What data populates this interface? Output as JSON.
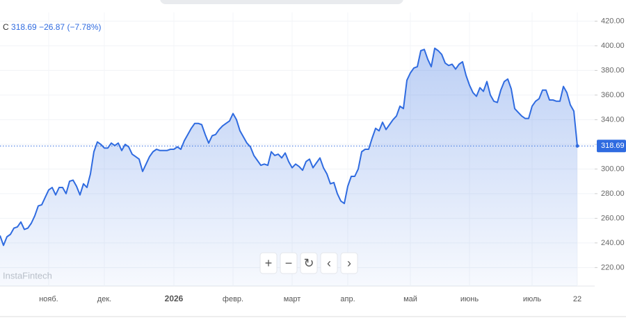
{
  "chart_data": {
    "type": "line",
    "symbol": "C",
    "price_label": "318.69",
    "change": "−26.87",
    "change_pct": "(−7.78%)",
    "watermark": "InstaFintech",
    "categories": [
      null,
      null,
      null,
      null,
      null,
      null,
      null,
      null,
      null,
      null,
      null,
      null,
      null,
      null,
      "нояб.",
      null,
      null,
      null,
      null,
      null,
      null,
      null,
      null,
      null,
      null,
      null,
      null,
      null,
      null,
      null,
      "дек.",
      null,
      null,
      null,
      null,
      null,
      null,
      null,
      null,
      null,
      null,
      null,
      null,
      null,
      null,
      null,
      null,
      null,
      null,
      null,
      "2026",
      null,
      null,
      null,
      null,
      null,
      null,
      null,
      null,
      null,
      null,
      null,
      null,
      null,
      null,
      null,
      null,
      "февр.",
      null,
      null,
      null,
      null,
      null,
      null,
      null,
      null,
      null,
      null,
      null,
      null,
      null,
      null,
      null,
      null,
      "март",
      null,
      null,
      null,
      null,
      null,
      null,
      null,
      null,
      null,
      null,
      null,
      null,
      null,
      null,
      null,
      "апр.",
      null,
      null,
      null,
      null,
      null,
      null,
      null,
      null,
      null,
      null,
      null,
      null,
      null,
      null,
      null,
      null,
      null,
      "май",
      null,
      null,
      null,
      null,
      null,
      null,
      null,
      null,
      null,
      null,
      null,
      null,
      null,
      null,
      null,
      null,
      "июнь",
      null,
      null,
      null,
      null,
      null,
      null,
      null,
      null,
      null,
      null,
      null,
      null,
      null,
      null,
      null,
      null,
      null,
      "июль",
      null,
      null,
      null,
      null,
      null,
      null,
      null,
      null,
      null,
      null,
      null,
      null,
      "22"
    ],
    "series": [
      {
        "color": "#2f6be0",
        "values": [
          246,
          238,
          245,
          247,
          252,
          253,
          257,
          251,
          252,
          256,
          262,
          270,
          271,
          277,
          283,
          285,
          279,
          285,
          285,
          280,
          290,
          291,
          286,
          279,
          288,
          285,
          296,
          314,
          322,
          320,
          317,
          317,
          321,
          319,
          321,
          315,
          320,
          318,
          312,
          310,
          308,
          298,
          304,
          310,
          314,
          316,
          315,
          315,
          315,
          316,
          316,
          318,
          316,
          323,
          328,
          333,
          337,
          337,
          336,
          328,
          321,
          327,
          328,
          332,
          335,
          337,
          339,
          345,
          340,
          331,
          326,
          321,
          318,
          311,
          307,
          303,
          304,
          303,
          314,
          311,
          312,
          309,
          313,
          306,
          301,
          304,
          302,
          299,
          306,
          308,
          301,
          305,
          309,
          301,
          296,
          288,
          289,
          280,
          274,
          272,
          286,
          294,
          294,
          300,
          314,
          316,
          316,
          325,
          333,
          331,
          338,
          332,
          336,
          340,
          343,
          351,
          349,
          372,
          378,
          382,
          383,
          396,
          397,
          389,
          383,
          398,
          396,
          393,
          386,
          384,
          385,
          381,
          385,
          387,
          376,
          368,
          362,
          359,
          366,
          363,
          371,
          360,
          355,
          354,
          364,
          371,
          373,
          365,
          349,
          346,
          343,
          341,
          341,
          351,
          355,
          357,
          364,
          364,
          356,
          356,
          355,
          355,
          367,
          362,
          352,
          347,
          318.69
        ]
      }
    ],
    "ylim": [
      205,
      427
    ],
    "yticks": [
      {
        "value": 220,
        "label": "220.00"
      },
      {
        "value": 240,
        "label": "240.00"
      },
      {
        "value": 260,
        "label": "260.00"
      },
      {
        "value": 280,
        "label": "280.00"
      },
      {
        "value": 300,
        "label": "300.00"
      },
      {
        "value": 320,
        "label": "320.00"
      },
      {
        "value": 340,
        "label": "340.00"
      },
      {
        "value": 360,
        "label": "360.00"
      },
      {
        "value": 380,
        "label": "380.00"
      },
      {
        "value": 400,
        "label": "400.00"
      },
      {
        "value": 420,
        "label": "420.00"
      }
    ],
    "grid": true
  }
}
